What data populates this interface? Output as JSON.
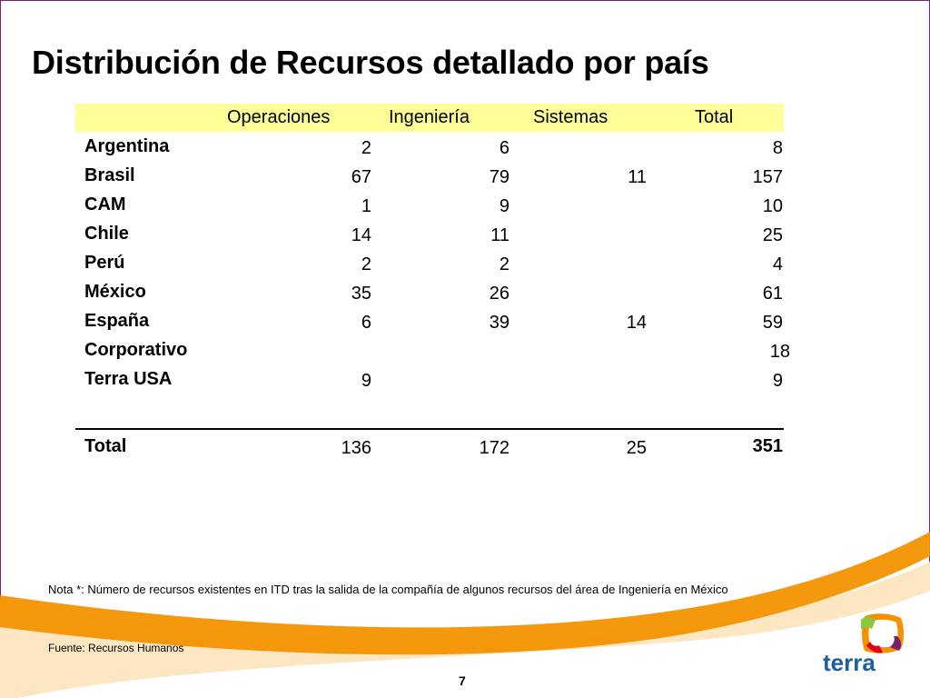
{
  "slide": {
    "title": "Distribución de Recursos detallado por país",
    "page_number": "7",
    "note": "Nota *: Número de recursos existentes en ITD tras la salida de la compañía de algunos recursos del área de Ingeniería en México",
    "source": "Fuente: Recursos Humanos",
    "logo_text": "terra"
  },
  "table": {
    "headers": [
      "Operaciones",
      "Ingeniería",
      "Sistemas",
      "Total"
    ],
    "rows": [
      {
        "country": "Argentina",
        "operaciones": "2",
        "ingenieria": "6",
        "sistemas": "",
        "total": "8"
      },
      {
        "country": "Brasil",
        "operaciones": "67",
        "ingenieria": "79",
        "sistemas": "11",
        "total": "157"
      },
      {
        "country": "CAM",
        "operaciones": "1",
        "ingenieria": "9",
        "sistemas": "",
        "total": "10"
      },
      {
        "country": "Chile",
        "operaciones": "14",
        "ingenieria": "11",
        "sistemas": "",
        "total": "25"
      },
      {
        "country": "Perú",
        "operaciones": "2",
        "ingenieria": "2",
        "sistemas": "",
        "total": "4"
      },
      {
        "country": "México",
        "operaciones": "35",
        "ingenieria": "26",
        "sistemas": "",
        "total": "61"
      },
      {
        "country": "España",
        "operaciones": "6",
        "ingenieria": "39",
        "sistemas": "14",
        "total": "59"
      },
      {
        "country": "Corporativo",
        "operaciones": "",
        "ingenieria": "",
        "sistemas": "",
        "total": "18"
      },
      {
        "country": "Terra USA",
        "operaciones": "9",
        "ingenieria": "",
        "sistemas": "",
        "total": "9"
      }
    ],
    "total_row": {
      "label": "Total",
      "operaciones": "136",
      "ingenieria": "172",
      "sistemas": "25",
      "total": "351"
    }
  },
  "colors": {
    "header_band": "#ffff99",
    "swoosh_orange": "#f39200",
    "frame_border": "#7a1f6e",
    "logo_text": "#1e5fa0"
  }
}
